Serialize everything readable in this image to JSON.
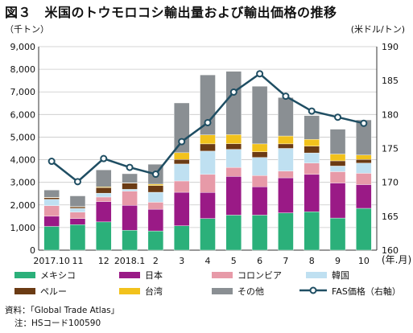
{
  "title": "図３　米国のトウモロコシ輸出量および輸出価格の推移",
  "left_unit": "（千トン）",
  "right_unit": "(米ドル/トン)",
  "x_unit": "(年.月)",
  "source": "資料：「Global Trade Atlas」",
  "note": "注：HSコード100590",
  "chart_data": {
    "type": "bar",
    "stacked": true,
    "categories": [
      "2017.10",
      "11",
      "12",
      "2018.1",
      "2",
      "3",
      "4",
      "5",
      "6",
      "7",
      "8",
      "9",
      "10"
    ],
    "ylim": [
      0,
      9000
    ],
    "yticks": [
      0,
      1000,
      2000,
      3000,
      4000,
      5000,
      6000,
      7000,
      8000,
      9000
    ],
    "ytick_labels": [
      "0",
      "1,000",
      "2,000",
      "3,000",
      "4,000",
      "5,000",
      "6,000",
      "7,000",
      "8,000",
      "9,000"
    ],
    "y2lim": [
      160,
      190
    ],
    "y2ticks": [
      160,
      165,
      170,
      175,
      180,
      185,
      190
    ],
    "grid": true,
    "legend_position": "bottom",
    "series": [
      {
        "name": "メキシコ",
        "color": "#2bb07a",
        "values": [
          1050,
          1130,
          1250,
          880,
          850,
          1080,
          1400,
          1550,
          1550,
          1650,
          1700,
          1420,
          1850
        ]
      },
      {
        "name": "日本",
        "color": "#9a1a86",
        "values": [
          450,
          270,
          900,
          1100,
          960,
          1480,
          1150,
          1710,
          1250,
          1550,
          1650,
          1550,
          1050
        ]
      },
      {
        "name": "コロンビア",
        "color": "#e79aa8",
        "values": [
          470,
          280,
          200,
          630,
          310,
          500,
          800,
          400,
          500,
          300,
          500,
          500,
          500
        ]
      },
      {
        "name": "韓国",
        "color": "#bfe0f1",
        "values": [
          280,
          170,
          170,
          80,
          440,
          750,
          1030,
          800,
          800,
          1000,
          450,
          250,
          450
        ]
      },
      {
        "name": "ペルー",
        "color": "#6b3b14",
        "values": [
          70,
          60,
          250,
          270,
          300,
          200,
          320,
          250,
          250,
          200,
          300,
          230,
          160
        ]
      },
      {
        "name": "台湾",
        "color": "#f2c21c",
        "values": [
          20,
          20,
          30,
          20,
          60,
          300,
          400,
          400,
          350,
          350,
          300,
          300,
          200
        ]
      },
      {
        "name": "その他",
        "color": "#8a8f93",
        "values": [
          320,
          470,
          750,
          400,
          880,
          2200,
          2650,
          2800,
          2550,
          1700,
          1050,
          1100,
          1550
        ]
      }
    ],
    "line_series": {
      "name": "FAS価格（右軸）",
      "axis": "right",
      "color": "#1f4e63",
      "values": [
        173.1,
        170.1,
        173.5,
        172.2,
        171.2,
        176.0,
        178.8,
        183.3,
        186.0,
        182.7,
        180.5,
        179.6,
        178.7
      ]
    }
  }
}
